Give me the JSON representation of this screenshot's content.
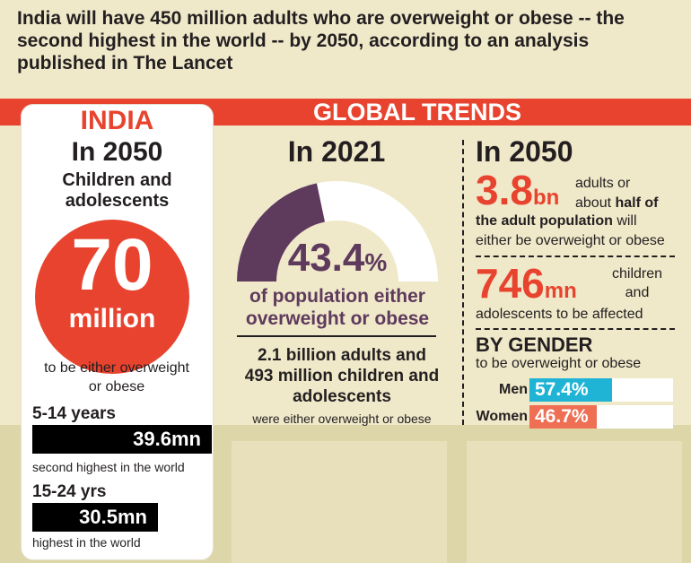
{
  "headline": "India will have 450 million adults who are overweight or obese -- the second highest in the world -- by 2050, according to an analysis published in The Lancet",
  "colors": {
    "background": "#efe8c9",
    "accent_red": "#e8432e",
    "purple": "#5e3a5c",
    "men": "#1fb3d6",
    "women": "#ee6f54"
  },
  "global_title": "GLOBAL TRENDS",
  "india": {
    "title": "INDIA",
    "year": "In 2050",
    "subtitle_line1": "Children and",
    "subtitle_line2": "adolescents",
    "circle_number": "70",
    "circle_unit": "million",
    "desc_line1": "to be either overweight",
    "desc_line2": "or obese",
    "age_groups": [
      {
        "label": "5-14 years",
        "value": "39.6mn",
        "note": "second highest in the world"
      },
      {
        "label": "15-24 yrs",
        "value": "30.5mn",
        "note": "highest in the world"
      }
    ]
  },
  "global_2021": {
    "year": "In 2021",
    "percent_value": "43.4",
    "percent_symbol": "%",
    "desc_line1": "of population either",
    "desc_line2": "overweight or obese",
    "counts_line1": "2.1 billion adults and",
    "counts_line2": "493 million children and",
    "counts_line3": "adolescents",
    "note": "were either overweight or obese"
  },
  "global_2050": {
    "year": "In 2050",
    "adults_num": "3.8",
    "adults_unit": "bn",
    "adults_text_line1": "adults or",
    "adults_text_line2_pre": "about ",
    "adults_text_line2_bold": "half of",
    "adults_text_line3_bold": "the adult population",
    "adults_text_line3_post": " will",
    "adults_text_line4": "either be overweight or obese",
    "children_num": "746",
    "children_unit": "mn",
    "children_text_line1": "children",
    "children_text_line2": "and",
    "children_text_line3": "adolescents to be affected"
  },
  "gender": {
    "title": "BY GENDER",
    "subtitle": "to be overweight or obese",
    "men_label": "Men",
    "men_value": "57.4%",
    "women_label": "Women",
    "women_value": "46.7%"
  },
  "chart_data": [
    {
      "type": "pie",
      "values": [
        43.4,
        56.6
      ],
      "title": "In 2021"
    },
    {
      "type": "bar",
      "title": "BY GENDER",
      "categories": [
        "Men",
        "Women"
      ],
      "values": [
        57.4,
        46.7
      ]
    }
  ]
}
